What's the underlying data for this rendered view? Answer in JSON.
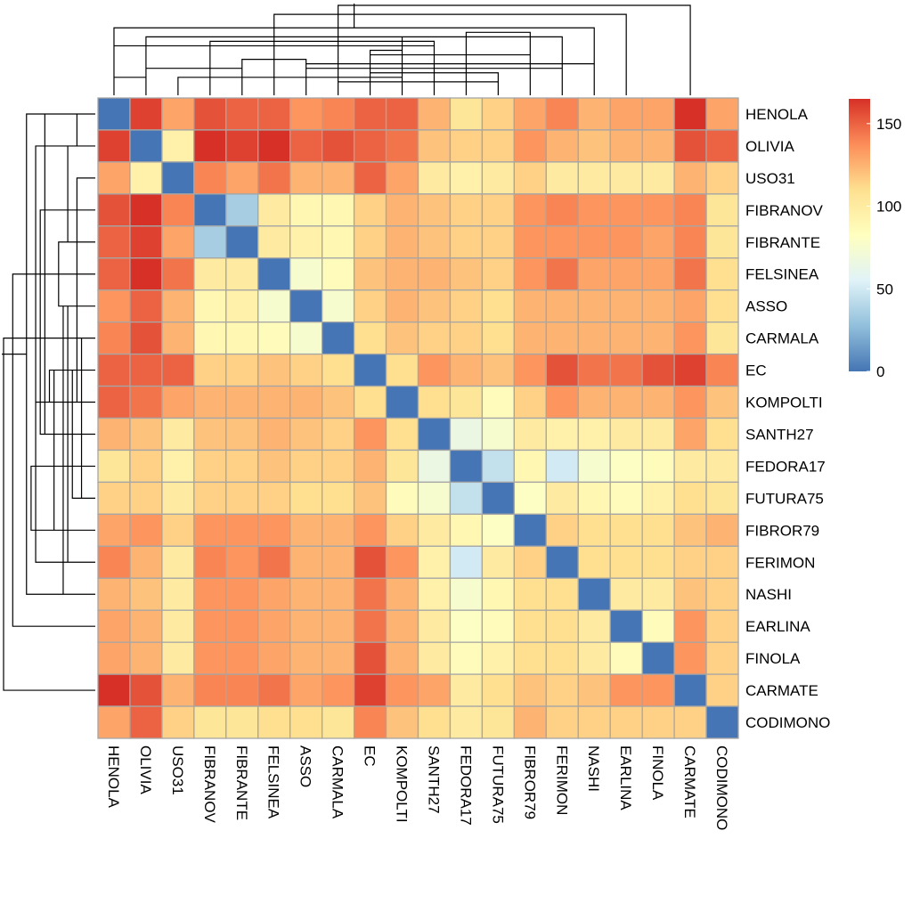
{
  "chart_data": {
    "type": "heatmap",
    "title": "",
    "rows": [
      "HENOLA",
      "OLIVIA",
      "USO31",
      "FIBRANOV",
      "FIBRANTE",
      "FELSINEA",
      "ASSO",
      "CARMALA",
      "EC",
      "KOMPOLTI",
      "SANTH27",
      "FEDORA17",
      "FUTURA75",
      "FIBROR79",
      "FERIMON",
      "NASHI",
      "EARLINA",
      "FINOLA",
      "CARMATE",
      "CODIMONO"
    ],
    "columns": [
      "HENOLA",
      "OLIVIA",
      "USO31",
      "FIBRANOV",
      "FIBRANTE",
      "FELSINEA",
      "ASSO",
      "CARMALA",
      "EC",
      "KOMPOLTI",
      "SANTH27",
      "FEDORA17",
      "FUTURA75",
      "FIBROR79",
      "FERIMON",
      "NASHI",
      "EARLINA",
      "FINOLA",
      "CARMATE",
      "CODIMONO"
    ],
    "values": [
      [
        0,
        160,
        130,
        155,
        150,
        150,
        135,
        140,
        150,
        150,
        125,
        105,
        115,
        130,
        140,
        125,
        130,
        130,
        165,
        130
      ],
      [
        160,
        0,
        95,
        165,
        160,
        165,
        150,
        155,
        150,
        145,
        120,
        115,
        115,
        135,
        125,
        120,
        125,
        125,
        155,
        150
      ],
      [
        130,
        95,
        0,
        140,
        130,
        145,
        125,
        125,
        150,
        130,
        100,
        95,
        100,
        115,
        100,
        100,
        100,
        100,
        125,
        115
      ],
      [
        155,
        165,
        140,
        0,
        35,
        100,
        90,
        90,
        115,
        125,
        120,
        115,
        115,
        135,
        140,
        135,
        135,
        135,
        140,
        105
      ],
      [
        150,
        160,
        130,
        35,
        0,
        100,
        95,
        90,
        115,
        125,
        120,
        115,
        115,
        135,
        135,
        135,
        135,
        130,
        140,
        105
      ],
      [
        150,
        165,
        145,
        100,
        100,
        0,
        75,
        85,
        120,
        125,
        125,
        120,
        115,
        135,
        145,
        130,
        130,
        130,
        145,
        110
      ],
      [
        135,
        150,
        125,
        90,
        95,
        75,
        0,
        75,
        115,
        125,
        120,
        115,
        110,
        125,
        125,
        125,
        125,
        125,
        130,
        110
      ],
      [
        140,
        155,
        125,
        90,
        90,
        85,
        75,
        0,
        110,
        120,
        115,
        115,
        110,
        125,
        125,
        125,
        125,
        125,
        135,
        105
      ],
      [
        150,
        150,
        150,
        115,
        115,
        120,
        115,
        110,
        0,
        110,
        135,
        125,
        120,
        135,
        155,
        145,
        145,
        155,
        160,
        140
      ],
      [
        150,
        145,
        130,
        125,
        125,
        125,
        125,
        120,
        110,
        0,
        110,
        105,
        85,
        115,
        135,
        125,
        125,
        125,
        135,
        120
      ],
      [
        125,
        120,
        100,
        120,
        120,
        125,
        120,
        115,
        135,
        110,
        0,
        65,
        75,
        100,
        95,
        95,
        100,
        100,
        130,
        110
      ],
      [
        105,
        115,
        95,
        115,
        115,
        120,
        115,
        115,
        125,
        105,
        65,
        0,
        45,
        90,
        50,
        75,
        80,
        85,
        100,
        100
      ],
      [
        115,
        115,
        100,
        115,
        115,
        115,
        110,
        110,
        120,
        85,
        75,
        45,
        0,
        80,
        100,
        90,
        85,
        95,
        110,
        105
      ],
      [
        130,
        135,
        115,
        135,
        135,
        135,
        125,
        125,
        135,
        115,
        100,
        90,
        80,
        0,
        115,
        110,
        110,
        110,
        120,
        125
      ],
      [
        140,
        125,
        100,
        140,
        135,
        145,
        125,
        125,
        155,
        135,
        95,
        50,
        100,
        115,
        0,
        110,
        110,
        110,
        115,
        115
      ],
      [
        125,
        120,
        100,
        135,
        135,
        130,
        125,
        125,
        145,
        125,
        95,
        75,
        90,
        110,
        110,
        0,
        100,
        100,
        120,
        115
      ],
      [
        130,
        125,
        100,
        135,
        135,
        130,
        125,
        125,
        145,
        125,
        100,
        80,
        85,
        110,
        110,
        100,
        0,
        85,
        135,
        115
      ],
      [
        130,
        125,
        100,
        135,
        135,
        130,
        125,
        125,
        155,
        125,
        100,
        85,
        95,
        110,
        110,
        100,
        85,
        0,
        135,
        115
      ],
      [
        165,
        155,
        125,
        140,
        140,
        145,
        130,
        135,
        160,
        135,
        130,
        100,
        110,
        120,
        115,
        120,
        135,
        135,
        0,
        115
      ],
      [
        130,
        150,
        115,
        105,
        105,
        110,
        110,
        105,
        140,
        120,
        110,
        100,
        105,
        125,
        115,
        115,
        115,
        115,
        115,
        0
      ]
    ],
    "colorbar": {
      "min": 0,
      "max": 165,
      "ticks": [
        0,
        50,
        100,
        150
      ]
    },
    "palette": [
      "#4575B4",
      "#91BFDB",
      "#E0F3F8",
      "#FFFFBF",
      "#FEE090",
      "#FC8D59",
      "#D73027"
    ],
    "border_color": "#A6A6A6",
    "legend_position": "right",
    "row_dendrogram": true,
    "column_dendrogram": true,
    "dendrogram_merges": [
      [
        1,
        2,
        4
      ],
      [
        2,
        5,
        6
      ],
      [
        4,
        11,
        12
      ],
      [
        5,
        7,
        8
      ],
      [
        6,
        17,
        18
      ],
      [
        7,
        16,
        7
      ],
      [
        7,
        15,
        6
      ],
      [
        8,
        19,
        20
      ],
      [
        9,
        13,
        5
      ],
      [
        9,
        14,
        9
      ],
      [
        10,
        9,
        10
      ],
      [
        10,
        3,
        4
      ],
      [
        11,
        1,
        11
      ],
      [
        12,
        10,
        13
      ],
      [
        13,
        8,
        3
      ],
      [
        14,
        12,
        14
      ],
      [
        15,
        2,
        13
      ],
      [
        16,
        1,
        15
      ]
    ]
  }
}
